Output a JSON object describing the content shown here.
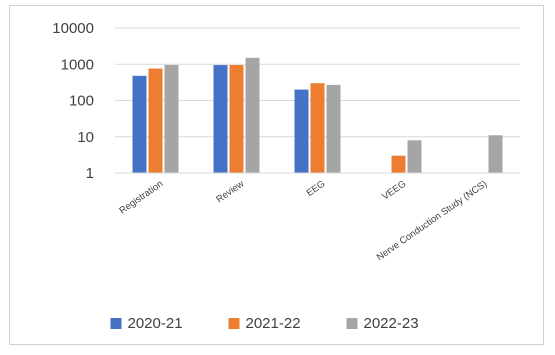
{
  "chart_data": {
    "type": "bar",
    "title": "",
    "xlabel": "",
    "ylabel": "",
    "y_scale": "log",
    "ylim": [
      1,
      10000
    ],
    "y_ticks": [
      1,
      10,
      100,
      1000,
      10000
    ],
    "y_tick_labels": [
      "1",
      "10",
      "100",
      "1000",
      "10000"
    ],
    "grid": true,
    "legend_position": "bottom",
    "categories": [
      "Registration",
      "Review",
      "EEG",
      "VEEG",
      "Nerve Conduction Study (NCS)"
    ],
    "series": [
      {
        "name": "2020-21",
        "color": "#4472c4",
        "values": [
          480,
          950,
          200,
          null,
          null
        ]
      },
      {
        "name": "2021-22",
        "color": "#ed7d31",
        "values": [
          760,
          950,
          300,
          3,
          null
        ]
      },
      {
        "name": "2022-23",
        "color": "#a5a5a5",
        "values": [
          950,
          1500,
          270,
          8,
          11
        ]
      }
    ]
  }
}
